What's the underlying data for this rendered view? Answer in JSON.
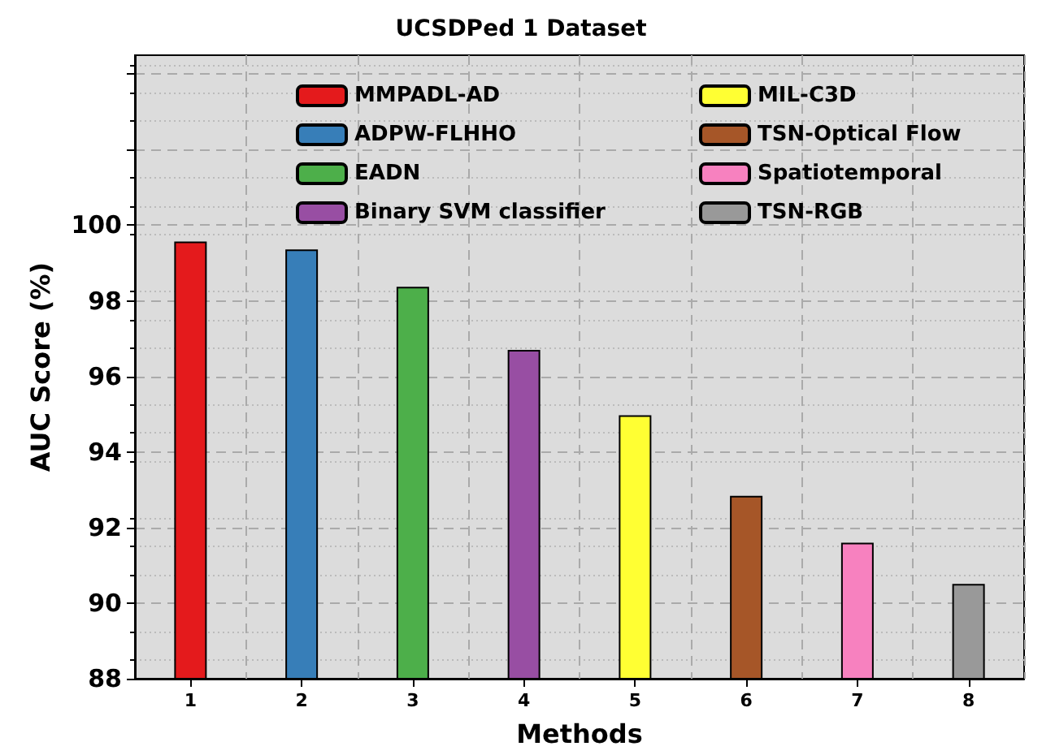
{
  "chart_data": {
    "type": "bar",
    "title": "UCSDPed 1 Dataset",
    "xlabel": "Methods",
    "ylabel": "AUC Score (%)",
    "categories": [
      "1",
      "2",
      "3",
      "4",
      "5",
      "6",
      "7",
      "8"
    ],
    "series": [
      {
        "name": "MMPADL-AD",
        "color": "#e41a1c",
        "values": [
          99.57,
          null,
          null,
          null,
          null,
          null,
          null,
          null
        ]
      },
      {
        "name": "ADPW-FLHHO",
        "color": "#377eb8",
        "values": [
          null,
          99.36,
          null,
          null,
          null,
          null,
          null,
          null
        ]
      },
      {
        "name": "EADN",
        "color": "#4daf4a",
        "values": [
          null,
          null,
          98.37,
          null,
          null,
          null,
          null,
          null
        ]
      },
      {
        "name": "Binary SVM classifier",
        "color": "#984ea3",
        "values": [
          null,
          null,
          null,
          96.7,
          null,
          null,
          null,
          null
        ]
      },
      {
        "name": "MIL-C3D",
        "color": "#ffff33",
        "values": [
          null,
          null,
          null,
          null,
          94.97,
          null,
          null,
          null
        ]
      },
      {
        "name": "TSN-Optical Flow",
        "color": "#a65628",
        "values": [
          null,
          null,
          null,
          null,
          null,
          92.84,
          null,
          null
        ]
      },
      {
        "name": "Spatiotemporal",
        "color": "#f781bf",
        "values": [
          null,
          null,
          null,
          null,
          null,
          null,
          91.6,
          null
        ]
      },
      {
        "name": "TSN-RGB",
        "color": "#999999",
        "values": [
          null,
          null,
          null,
          null,
          null,
          null,
          null,
          90.51
        ]
      }
    ],
    "ylim": [
      88,
      104.5
    ],
    "yticks": [
      88,
      90,
      92,
      94,
      96,
      98,
      100,
      {
        "value": 102,
        "label": null
      },
      {
        "value": 104,
        "label": null
      }
    ],
    "grid": true,
    "legend": "top"
  }
}
